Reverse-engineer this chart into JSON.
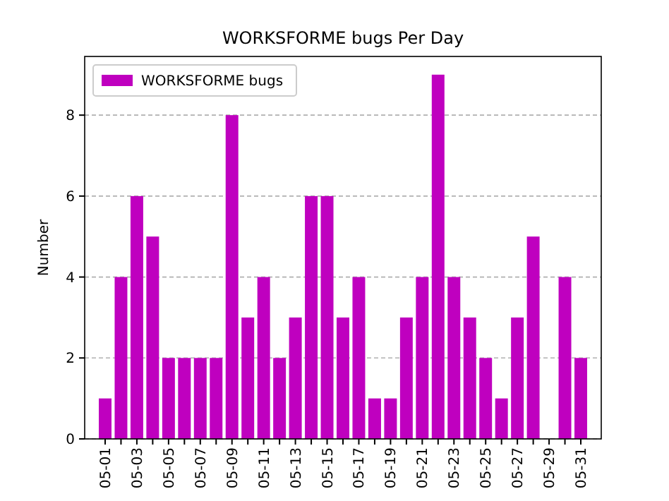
{
  "chart_data": {
    "type": "bar",
    "title": "WORKSFORME bugs Per Day",
    "ylabel": "Number",
    "categories": [
      "05-01",
      null,
      "05-03",
      null,
      "05-05",
      null,
      "05-07",
      null,
      "05-09",
      null,
      "05-11",
      null,
      "05-13",
      null,
      "05-15",
      null,
      "05-17",
      null,
      "05-19",
      null,
      "05-21",
      null,
      "05-23",
      null,
      "05-25",
      null,
      "05-27",
      null,
      "05-29",
      null,
      "05-31"
    ],
    "series": [
      {
        "name": "WORKSFORME bugs",
        "color": "#bf00bf",
        "values": [
          1,
          4,
          6,
          5,
          2,
          2,
          2,
          2,
          8,
          3,
          4,
          2,
          3,
          6,
          6,
          3,
          4,
          1,
          1,
          3,
          4,
          9,
          4,
          3,
          2,
          1,
          3,
          5,
          0,
          4,
          2
        ]
      }
    ],
    "ylim": [
      0,
      9.45
    ],
    "yticks": [
      0,
      2,
      4,
      6,
      8
    ],
    "grid": "y",
    "legend": "top left"
  }
}
